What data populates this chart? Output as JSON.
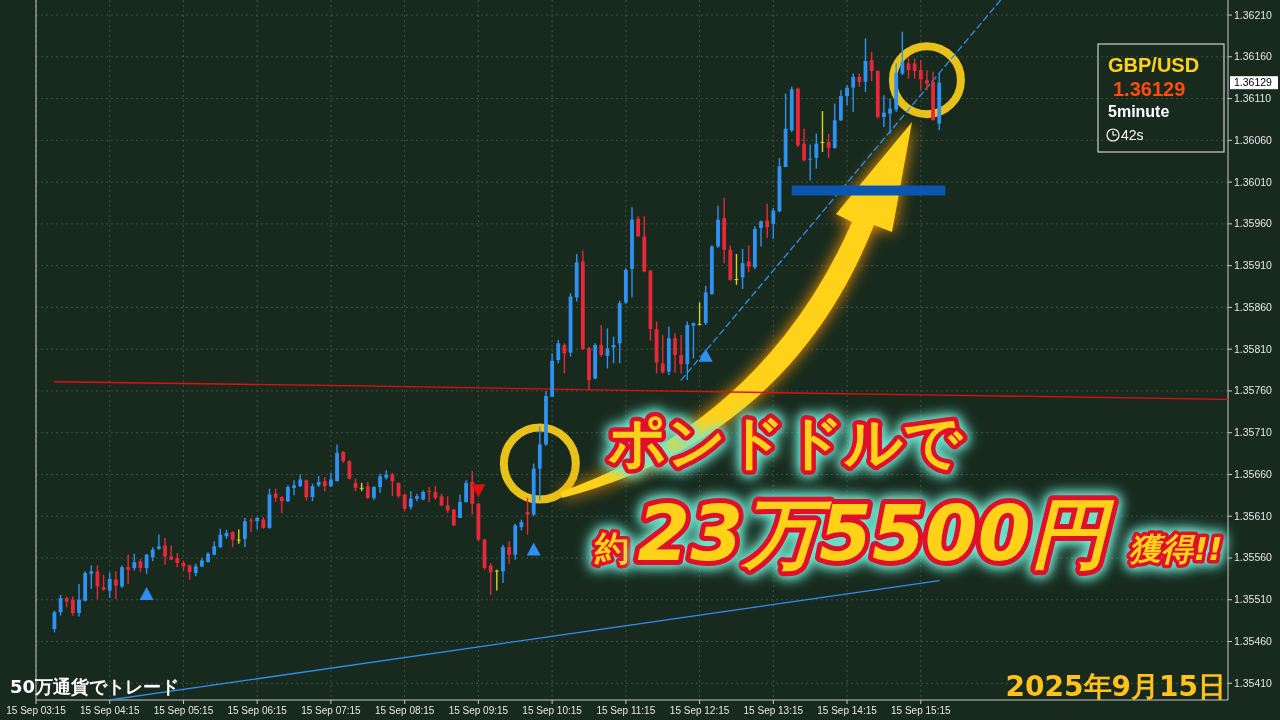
{
  "chart_data": {
    "type": "candlestick",
    "title": "GBP/USD",
    "annotations": [
      "ポンドドルで",
      "約",
      "23万5500円",
      "獲得!!",
      "50万通貨でトレード",
      "2025年9月15日",
      "1.36129",
      "5minute",
      "42s",
      "1.36129"
    ],
    "xlim": [
      "2025-09-15T03:15",
      "2025-09-15T19:25"
    ],
    "ylim": [
      1.3539,
      1.36228
    ],
    "xticks": [
      {
        "value": "2025-09-15T03:15",
        "label": "15 Sep 03:15"
      },
      {
        "value": "2025-09-15T04:15",
        "label": "15 Sep 04:15"
      },
      {
        "value": "2025-09-15T05:15",
        "label": "15 Sep 05:15"
      },
      {
        "value": "2025-09-15T06:15",
        "label": "15 Sep 06:15"
      },
      {
        "value": "2025-09-15T07:15",
        "label": "15 Sep 07:15"
      },
      {
        "value": "2025-09-15T08:15",
        "label": "15 Sep 08:15"
      },
      {
        "value": "2025-09-15T09:15",
        "label": "15 Sep 09:15"
      },
      {
        "value": "2025-09-15T10:15",
        "label": "15 Sep 10:15"
      },
      {
        "value": "2025-09-15T11:15",
        "label": "15 Sep 11:15"
      },
      {
        "value": "2025-09-15T12:15",
        "label": "15 Sep 12:15"
      },
      {
        "value": "2025-09-15T13:15",
        "label": "15 Sep 13:15"
      },
      {
        "value": "2025-09-15T14:15",
        "label": "15 Sep 14:15"
      },
      {
        "value": "2025-09-15T15:15",
        "label": "15 Sep 15:15"
      }
    ],
    "yticks": [
      {
        "value": 1.3541,
        "label": "1.35410"
      },
      {
        "value": 1.3546,
        "label": "1.35460"
      },
      {
        "value": 1.3551,
        "label": "1.35510"
      },
      {
        "value": 1.3556,
        "label": "1.35560"
      },
      {
        "value": 1.3561,
        "label": "1.35610"
      },
      {
        "value": 1.3566,
        "label": "1.35660"
      },
      {
        "value": 1.3571,
        "label": "1.35710"
      },
      {
        "value": 1.3576,
        "label": "1.35760"
      },
      {
        "value": 1.3581,
        "label": "1.35810"
      },
      {
        "value": 1.3586,
        "label": "1.35860"
      },
      {
        "value": 1.3591,
        "label": "1.35910"
      },
      {
        "value": 1.3596,
        "label": "1.35960"
      },
      {
        "value": 1.3601,
        "label": "1.36010"
      },
      {
        "value": 1.3606,
        "label": "1.36060"
      },
      {
        "value": 1.3611,
        "label": "1.36110"
      },
      {
        "value": 1.3616,
        "label": "1.36160"
      },
      {
        "value": 1.3621,
        "label": "1.36210"
      }
    ],
    "grid": true,
    "x": [
      "2025-09-15T03:30",
      "2025-09-15T03:35",
      "2025-09-15T03:40",
      "2025-09-15T03:45",
      "2025-09-15T03:50",
      "2025-09-15T03:55",
      "2025-09-15T04:00",
      "2025-09-15T04:05",
      "2025-09-15T04:10",
      "2025-09-15T04:15",
      "2025-09-15T04:20",
      "2025-09-15T04:25",
      "2025-09-15T04:30",
      "2025-09-15T04:35",
      "2025-09-15T04:40",
      "2025-09-15T04:45",
      "2025-09-15T04:50",
      "2025-09-15T04:55",
      "2025-09-15T05:00",
      "2025-09-15T05:05",
      "2025-09-15T05:10",
      "2025-09-15T05:15",
      "2025-09-15T05:20",
      "2025-09-15T05:25",
      "2025-09-15T05:30",
      "2025-09-15T05:35",
      "2025-09-15T05:40",
      "2025-09-15T05:45",
      "2025-09-15T05:50",
      "2025-09-15T05:55",
      "2025-09-15T06:00",
      "2025-09-15T06:05",
      "2025-09-15T06:10",
      "2025-09-15T06:15",
      "2025-09-15T06:20",
      "2025-09-15T06:25",
      "2025-09-15T06:30",
      "2025-09-15T06:35",
      "2025-09-15T06:40",
      "2025-09-15T06:45",
      "2025-09-15T06:50",
      "2025-09-15T06:55",
      "2025-09-15T07:00",
      "2025-09-15T07:05",
      "2025-09-15T07:10",
      "2025-09-15T07:15",
      "2025-09-15T07:20",
      "2025-09-15T07:25",
      "2025-09-15T07:30",
      "2025-09-15T07:35",
      "2025-09-15T07:40",
      "2025-09-15T07:45",
      "2025-09-15T07:50",
      "2025-09-15T07:55",
      "2025-09-15T08:00",
      "2025-09-15T08:05",
      "2025-09-15T08:10",
      "2025-09-15T08:15",
      "2025-09-15T08:20",
      "2025-09-15T08:25",
      "2025-09-15T08:30",
      "2025-09-15T08:35",
      "2025-09-15T08:40",
      "2025-09-15T08:45",
      "2025-09-15T08:50",
      "2025-09-15T08:55",
      "2025-09-15T09:00",
      "2025-09-15T09:05",
      "2025-09-15T09:10",
      "2025-09-15T09:15",
      "2025-09-15T09:20",
      "2025-09-15T09:25",
      "2025-09-15T09:30",
      "2025-09-15T09:35",
      "2025-09-15T09:40",
      "2025-09-15T09:45",
      "2025-09-15T09:50",
      "2025-09-15T09:55",
      "2025-09-15T10:00",
      "2025-09-15T10:05",
      "2025-09-15T10:10",
      "2025-09-15T10:15",
      "2025-09-15T10:20",
      "2025-09-15T10:25",
      "2025-09-15T10:30",
      "2025-09-15T10:35",
      "2025-09-15T10:40",
      "2025-09-15T10:45",
      "2025-09-15T10:50",
      "2025-09-15T10:55",
      "2025-09-15T11:00",
      "2025-09-15T11:05",
      "2025-09-15T11:10",
      "2025-09-15T11:15",
      "2025-09-15T11:20",
      "2025-09-15T11:25",
      "2025-09-15T11:30",
      "2025-09-15T11:35",
      "2025-09-15T11:40",
      "2025-09-15T11:45",
      "2025-09-15T11:50",
      "2025-09-15T11:55",
      "2025-09-15T12:00",
      "2025-09-15T12:05",
      "2025-09-15T12:10",
      "2025-09-15T12:15",
      "2025-09-15T12:20",
      "2025-09-15T12:25",
      "2025-09-15T12:30",
      "2025-09-15T12:35",
      "2025-09-15T12:40",
      "2025-09-15T12:45",
      "2025-09-15T12:50",
      "2025-09-15T12:55",
      "2025-09-15T13:00",
      "2025-09-15T13:05",
      "2025-09-15T13:10",
      "2025-09-15T13:15",
      "2025-09-15T13:20",
      "2025-09-15T13:25",
      "2025-09-15T13:30",
      "2025-09-15T13:35",
      "2025-09-15T13:40",
      "2025-09-15T13:45",
      "2025-09-15T13:50",
      "2025-09-15T13:55",
      "2025-09-15T14:00",
      "2025-09-15T14:05",
      "2025-09-15T14:10",
      "2025-09-15T14:15",
      "2025-09-15T14:20",
      "2025-09-15T14:25",
      "2025-09-15T14:30",
      "2025-09-15T14:35",
      "2025-09-15T14:40",
      "2025-09-15T14:45",
      "2025-09-15T14:50",
      "2025-09-15T14:55",
      "2025-09-15T15:00",
      "2025-09-15T15:05",
      "2025-09-15T15:10",
      "2025-09-15T15:15",
      "2025-09-15T15:20",
      "2025-09-15T15:25",
      "2025-09-15T15:30"
    ],
    "ohlc": [
      [
        1.35475,
        1.35497,
        1.35471,
        1.35495
      ],
      [
        1.35495,
        1.35516,
        1.35491,
        1.35512
      ],
      [
        1.35512,
        1.35514,
        1.35501,
        1.35508
      ],
      [
        1.3551,
        1.35514,
        1.35491,
        1.35494
      ],
      [
        1.35494,
        1.35529,
        1.3549,
        1.3551
      ],
      [
        1.35509,
        1.35544,
        1.35508,
        1.35542
      ],
      [
        1.35541,
        1.35551,
        1.35523,
        1.35544
      ],
      [
        1.35544,
        1.35551,
        1.35511,
        1.35526
      ],
      [
        1.35525,
        1.3554,
        1.35521,
        1.35522
      ],
      [
        1.35521,
        1.35543,
        1.35512,
        1.35535
      ],
      [
        1.35534,
        1.35544,
        1.35511,
        1.35527
      ],
      [
        1.35526,
        1.35551,
        1.35524,
        1.35549
      ],
      [
        1.35549,
        1.35564,
        1.35529,
        1.35546
      ],
      [
        1.35548,
        1.35565,
        1.35545,
        1.35555
      ],
      [
        1.35556,
        1.35559,
        1.35543,
        1.35548
      ],
      [
        1.35548,
        1.35565,
        1.35541,
        1.35564
      ],
      [
        1.35561,
        1.35573,
        1.35556,
        1.3557
      ],
      [
        1.35571,
        1.35588,
        1.3557,
        1.35574
      ],
      [
        1.35575,
        1.35584,
        1.35552,
        1.35562
      ],
      [
        1.35562,
        1.35575,
        1.35558,
        1.35558
      ],
      [
        1.3556,
        1.35566,
        1.35549,
        1.35554
      ],
      [
        1.35554,
        1.35556,
        1.35545,
        1.3555
      ],
      [
        1.35551,
        1.35552,
        1.35534,
        1.35543
      ],
      [
        1.35542,
        1.35553,
        1.35538,
        1.3555
      ],
      [
        1.3555,
        1.3556,
        1.35549,
        1.35557
      ],
      [
        1.35555,
        1.35567,
        1.35555,
        1.35565
      ],
      [
        1.35564,
        1.3558,
        1.35563,
        1.35574
      ],
      [
        1.35573,
        1.35595,
        1.35572,
        1.35588
      ],
      [
        1.35586,
        1.35594,
        1.35583,
        1.3559
      ],
      [
        1.35591,
        1.35592,
        1.35573,
        1.35582
      ],
      [
        1.35582,
        1.35594,
        1.35577,
        1.35582
      ],
      [
        1.35583,
        1.35608,
        1.35573,
        1.35604
      ],
      [
        1.35605,
        1.35608,
        1.35591,
        1.35604
      ],
      [
        1.35604,
        1.35609,
        1.35594,
        1.35608
      ],
      [
        1.35606,
        1.35609,
        1.35595,
        1.35596
      ],
      [
        1.35596,
        1.35643,
        1.35595,
        1.35636
      ],
      [
        1.35637,
        1.35643,
        1.35627,
        1.35632
      ],
      [
        1.35633,
        1.35634,
        1.35614,
        1.35628
      ],
      [
        1.35628,
        1.35647,
        1.35627,
        1.35645
      ],
      [
        1.35644,
        1.35653,
        1.35635,
        1.35647
      ],
      [
        1.35646,
        1.3566,
        1.35645,
        1.35654
      ],
      [
        1.35653,
        1.35654,
        1.35629,
        1.35633
      ],
      [
        1.35633,
        1.35649,
        1.35628,
        1.35646
      ],
      [
        1.35647,
        1.35658,
        1.35645,
        1.35651
      ],
      [
        1.35652,
        1.35657,
        1.3564,
        1.35646
      ],
      [
        1.35646,
        1.35662,
        1.35645,
        1.35654
      ],
      [
        1.35652,
        1.35696,
        1.35652,
        1.35686
      ],
      [
        1.35687,
        1.35688,
        1.35674,
        1.35676
      ],
      [
        1.35676,
        1.35677,
        1.35654,
        1.35655
      ],
      [
        1.3565,
        1.35655,
        1.3564,
        1.35644
      ],
      [
        1.35644,
        1.3565,
        1.3564,
        1.35644
      ],
      [
        1.35646,
        1.35651,
        1.35631,
        1.35632
      ],
      [
        1.35632,
        1.35646,
        1.35629,
        1.35645
      ],
      [
        1.35645,
        1.35661,
        1.35638,
        1.35658
      ],
      [
        1.35656,
        1.35665,
        1.35654,
        1.3566
      ],
      [
        1.3566,
        1.35662,
        1.35634,
        1.35652
      ],
      [
        1.3565,
        1.3565,
        1.35632,
        1.35634
      ],
      [
        1.35636,
        1.35637,
        1.35616,
        1.35619
      ],
      [
        1.35621,
        1.3564,
        1.35618,
        1.35631
      ],
      [
        1.35631,
        1.35637,
        1.35628,
        1.35634
      ],
      [
        1.3563,
        1.35641,
        1.35629,
        1.35639
      ],
      [
        1.3564,
        1.35645,
        1.35627,
        1.35639
      ],
      [
        1.35639,
        1.35646,
        1.3563,
        1.35632
      ],
      [
        1.35634,
        1.35637,
        1.35622,
        1.35623
      ],
      [
        1.35623,
        1.35634,
        1.35614,
        1.35617
      ],
      [
        1.35618,
        1.35619,
        1.35598,
        1.35599
      ],
      [
        1.35608,
        1.35636,
        1.35608,
        1.35627
      ],
      [
        1.35627,
        1.35653,
        1.35626,
        1.3565
      ],
      [
        1.35651,
        1.35664,
        1.35612,
        1.35625
      ],
      [
        1.35625,
        1.35626,
        1.3558,
        1.35582
      ],
      [
        1.35582,
        1.35583,
        1.35546,
        1.35548
      ],
      [
        1.35551,
        1.35554,
        1.35516,
        1.35543
      ],
      [
        1.35545,
        1.35546,
        1.35521,
        1.35545
      ],
      [
        1.35544,
        1.35576,
        1.3553,
        1.35573
      ],
      [
        1.35573,
        1.3558,
        1.35553,
        1.35564
      ],
      [
        1.35564,
        1.35601,
        1.35558,
        1.35599
      ],
      [
        1.35597,
        1.35606,
        1.35593,
        1.35603
      ],
      [
        1.35615,
        1.35632,
        1.35588,
        1.35612
      ],
      [
        1.35612,
        1.35673,
        1.3561,
        1.35667
      ],
      [
        1.35667,
        1.35717,
        1.35629,
        1.35696
      ],
      [
        1.35696,
        1.3576,
        1.35694,
        1.35754
      ],
      [
        1.35753,
        1.35805,
        1.35753,
        1.35796
      ],
      [
        1.35797,
        1.35821,
        1.35793,
        1.35817
      ],
      [
        1.35815,
        1.35817,
        1.35781,
        1.35805
      ],
      [
        1.35806,
        1.35877,
        1.35801,
        1.35873
      ],
      [
        1.35872,
        1.35924,
        1.35867,
        1.35914
      ],
      [
        1.35915,
        1.35928,
        1.35809,
        1.3581
      ],
      [
        1.35811,
        1.35813,
        1.35761,
        1.35773
      ],
      [
        1.35775,
        1.35817,
        1.35774,
        1.35815
      ],
      [
        1.35815,
        1.35839,
        1.35801,
        1.35803
      ],
      [
        1.35802,
        1.35835,
        1.35787,
        1.35811
      ],
      [
        1.35812,
        1.35825,
        1.35793,
        1.35815
      ],
      [
        1.35817,
        1.35868,
        1.35793,
        1.35865
      ],
      [
        1.35866,
        1.35907,
        1.35864,
        1.35905
      ],
      [
        1.35906,
        1.3598,
        1.35872,
        1.35965
      ],
      [
        1.35966,
        1.35969,
        1.35945,
        1.35945
      ],
      [
        1.35945,
        1.35969,
        1.35902,
        1.35903
      ],
      [
        1.35904,
        1.35905,
        1.3582,
        1.35834
      ],
      [
        1.35834,
        1.35843,
        1.35781,
        1.35794
      ],
      [
        1.35793,
        1.35827,
        1.35781,
        1.35782
      ],
      [
        1.35783,
        1.35837,
        1.35779,
        1.35823
      ],
      [
        1.35823,
        1.35829,
        1.35782,
        1.35803
      ],
      [
        1.35803,
        1.35827,
        1.35781,
        1.35792
      ],
      [
        1.35792,
        1.35843,
        1.35773,
        1.35839
      ],
      [
        1.35838,
        1.35842,
        1.35799,
        1.35841
      ],
      [
        1.3584,
        1.35866,
        1.35839,
        1.3584
      ],
      [
        1.35841,
        1.35886,
        1.35839,
        1.35878
      ],
      [
        1.35876,
        1.35934,
        1.35875,
        1.35933
      ],
      [
        1.35933,
        1.35982,
        1.35931,
        1.35965
      ],
      [
        1.35967,
        1.35991,
        1.35913,
        1.35929
      ],
      [
        1.35929,
        1.35934,
        1.35892,
        1.35893
      ],
      [
        1.35894,
        1.35924,
        1.35887,
        1.35894
      ],
      [
        1.35896,
        1.3593,
        1.35882,
        1.35913
      ],
      [
        1.35915,
        1.35934,
        1.35902,
        1.35909
      ],
      [
        1.35908,
        1.35957,
        1.35906,
        1.35954
      ],
      [
        1.35955,
        1.35964,
        1.35933,
        1.35963
      ],
      [
        1.35964,
        1.35984,
        1.35943,
        1.35956
      ],
      [
        1.3596,
        1.35979,
        1.35942,
        1.35976
      ],
      [
        1.35975,
        1.36039,
        1.35974,
        1.36029
      ],
      [
        1.36028,
        1.36116,
        1.36028,
        1.36074
      ],
      [
        1.36072,
        1.36124,
        1.3607,
        1.36121
      ],
      [
        1.36122,
        1.36123,
        1.36052,
        1.36054
      ],
      [
        1.36056,
        1.36074,
        1.36035,
        1.36036
      ],
      [
        1.36038,
        1.36055,
        1.36012,
        1.36038
      ],
      [
        1.36039,
        1.36068,
        1.36026,
        1.36056
      ],
      [
        1.36058,
        1.36095,
        1.36046,
        1.36058
      ],
      [
        1.36058,
        1.36068,
        1.36039,
        1.36051
      ],
      [
        1.36051,
        1.36104,
        1.3605,
        1.36084
      ],
      [
        1.36084,
        1.3612,
        1.36083,
        1.36113
      ],
      [
        1.36113,
        1.36126,
        1.36102,
        1.36123
      ],
      [
        1.36123,
        1.3614,
        1.36094,
        1.36136
      ],
      [
        1.36136,
        1.3614,
        1.36124,
        1.3613
      ],
      [
        1.3613,
        1.36182,
        1.36118,
        1.36155
      ],
      [
        1.36156,
        1.36166,
        1.36131,
        1.36143
      ],
      [
        1.36143,
        1.36144,
        1.36086,
        1.36088
      ],
      [
        1.36088,
        1.36114,
        1.36076,
        1.36093
      ],
      [
        1.36092,
        1.3611,
        1.36068,
        1.36098
      ],
      [
        1.36097,
        1.36152,
        1.36094,
        1.36141
      ],
      [
        1.3614,
        1.3619,
        1.36138,
        1.36154
      ],
      [
        1.36152,
        1.36159,
        1.36134,
        1.36144
      ],
      [
        1.36152,
        1.36158,
        1.36134,
        1.36143
      ],
      [
        1.36144,
        1.36156,
        1.3612,
        1.36133
      ],
      [
        1.36132,
        1.36144,
        1.3612,
        1.36128
      ],
      [
        1.3613,
        1.36142,
        1.36084,
        1.36084
      ],
      [
        1.3608,
        1.3614,
        1.36072,
        1.36129
      ]
    ],
    "colors": [
      "#2f92f2",
      "#2f92f2",
      "#e8283a",
      "#e8283a",
      "#2f92f2",
      "#2f92f2",
      "#2f92f2",
      "#e8283a",
      "#e8283a",
      "#2f92f2",
      "#e8283a",
      "#2f92f2",
      "#e8283a",
      "#2f92f2",
      "#e8283a",
      "#2f92f2",
      "#2f92f2",
      "#2f92f2",
      "#e8283a",
      "#e8283a",
      "#e8283a",
      "#e8283a",
      "#e8283a",
      "#2f92f2",
      "#2f92f2",
      "#2f92f2",
      "#2f92f2",
      "#2f92f2",
      "#2f92f2",
      "#e8283a",
      "#d6d61e",
      "#2f92f2",
      "#e8283a",
      "#2f92f2",
      "#e8283a",
      "#2f92f2",
      "#e8283a",
      "#e8283a",
      "#2f92f2",
      "#2f92f2",
      "#2f92f2",
      "#e8283a",
      "#2f92f2",
      "#2f92f2",
      "#e8283a",
      "#2f92f2",
      "#2f92f2",
      "#e8283a",
      "#e8283a",
      "#e8283a",
      "#d6d61e",
      "#e8283a",
      "#2f92f2",
      "#2f92f2",
      "#2f92f2",
      "#e8283a",
      "#e8283a",
      "#e8283a",
      "#2f92f2",
      "#2f92f2",
      "#2f92f2",
      "#e8283a",
      "#e8283a",
      "#e8283a",
      "#e8283a",
      "#e8283a",
      "#2f92f2",
      "#2f92f2",
      "#e8283a",
      "#e8283a",
      "#e8283a",
      "#e8283a",
      "#d6d61e",
      "#2f92f2",
      "#e8283a",
      "#2f92f2",
      "#2f92f2",
      "#e8283a",
      "#2f92f2",
      "#2f92f2",
      "#2f92f2",
      "#2f92f2",
      "#2f92f2",
      "#e8283a",
      "#2f92f2",
      "#2f92f2",
      "#e8283a",
      "#e8283a",
      "#2f92f2",
      "#e8283a",
      "#2f92f2",
      "#2f92f2",
      "#2f92f2",
      "#2f92f2",
      "#2f92f2",
      "#e8283a",
      "#e8283a",
      "#e8283a",
      "#e8283a",
      "#e8283a",
      "#2f92f2",
      "#e8283a",
      "#e8283a",
      "#2f92f2",
      "#2f92f2",
      "#d6d61e",
      "#2f92f2",
      "#2f92f2",
      "#2f92f2",
      "#e8283a",
      "#e8283a",
      "#d6d61e",
      "#2f92f2",
      "#e8283a",
      "#2f92f2",
      "#2f92f2",
      "#e8283a",
      "#2f92f2",
      "#2f92f2",
      "#2f92f2",
      "#2f92f2",
      "#e8283a",
      "#e8283a",
      "#2f92f2",
      "#2f92f2",
      "#d6d61e",
      "#e8283a",
      "#2f92f2",
      "#2f92f2",
      "#2f92f2",
      "#2f92f2",
      "#e8283a",
      "#2f92f2",
      "#e8283a",
      "#e8283a",
      "#2f92f2",
      "#2f92f2",
      "#2f92f2",
      "#2f92f2",
      "#e8283a",
      "#e8283a",
      "#e8283a",
      "#e8283a",
      "#e8283a",
      "#2f92f2"
    ],
    "series": [
      {
        "type": "line",
        "color": "#e01010",
        "x": [
          "2025-09-15T03:30",
          "2025-09-15T07:40",
          "2025-09-15T11:40",
          "2025-09-15T15:30",
          "2025-09-15T19:25"
        ],
        "values": [
          1.35771,
          1.35766,
          1.3576,
          1.35755,
          1.3575
        ]
      },
      {
        "type": "line",
        "color": "#2f8fef",
        "x": [
          "2025-09-15T04:15",
          "2025-09-15T11:20",
          "2025-09-15T15:30"
        ],
        "values": [
          1.3539,
          1.3548,
          1.35533
        ]
      },
      {
        "type": "line",
        "color": "#2f8fef",
        "line_style": "dashed",
        "x": [
          "2025-09-15T12:00",
          "2025-09-15T16:20"
        ],
        "values": [
          1.35773,
          1.36228
        ]
      },
      {
        "type": "line",
        "color": "#0a56b0",
        "x": [
          "2025-09-15T13:30",
          "2025-09-15T15:35"
        ],
        "values": [
          1.36,
          1.36
        ]
      },
      {
        "type": "scatter",
        "color": "#2f8fef",
        "marker": "triangle",
        "x": [
          "2025-09-15T04:45",
          "2025-09-15T10:00",
          "2025-09-15T12:20"
        ],
        "values": [
          1.35517,
          1.3557,
          1.35802
        ]
      },
      {
        "type": "scatter",
        "color": "#e01010",
        "marker": "triangle",
        "x": [
          "2025-09-15T09:15"
        ],
        "values": [
          1.35641
        ]
      }
    ]
  }
}
